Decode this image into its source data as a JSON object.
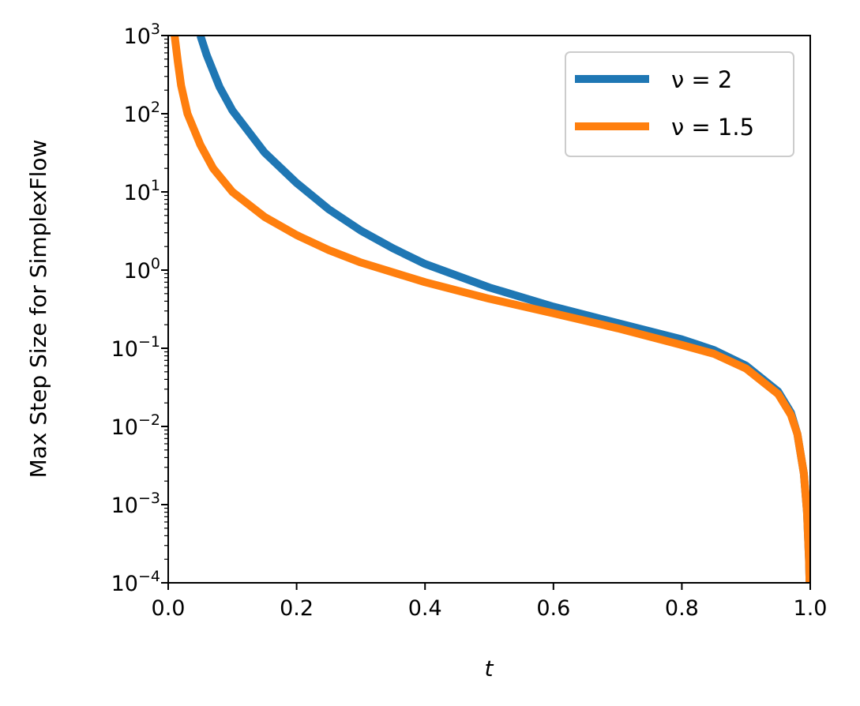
{
  "chart_data": {
    "type": "line",
    "title": "",
    "xlabel": "t",
    "ylabel": "Max Step Size for SimplexFlow",
    "xlim": [
      0.0,
      1.0
    ],
    "ylim": [
      0.0001,
      1000
    ],
    "yscale": "log",
    "grid": false,
    "legend_position": "top-right",
    "x_ticks": [
      "0.0",
      "0.2",
      "0.4",
      "0.6",
      "0.8",
      "1.0"
    ],
    "y_ticks": [
      {
        "base": "10",
        "exp": "3"
      },
      {
        "base": "10",
        "exp": "2"
      },
      {
        "base": "10",
        "exp": "1"
      },
      {
        "base": "10",
        "exp": "0"
      },
      {
        "base": "10",
        "exp": "−1"
      },
      {
        "base": "10",
        "exp": "−2"
      },
      {
        "base": "10",
        "exp": "−3"
      },
      {
        "base": "10",
        "exp": "−4"
      }
    ],
    "series": [
      {
        "name": "ν = 2",
        "legend_label": "ν = 2",
        "color": "#1f77b4",
        "points": [
          [
            0.05,
            1000
          ],
          [
            0.06,
            560
          ],
          [
            0.08,
            220
          ],
          [
            0.1,
            110
          ],
          [
            0.15,
            32
          ],
          [
            0.2,
            13
          ],
          [
            0.25,
            6.0
          ],
          [
            0.3,
            3.2
          ],
          [
            0.35,
            1.9
          ],
          [
            0.4,
            1.2
          ],
          [
            0.5,
            0.6
          ],
          [
            0.6,
            0.34
          ],
          [
            0.7,
            0.21
          ],
          [
            0.8,
            0.13
          ],
          [
            0.85,
            0.095
          ],
          [
            0.9,
            0.06
          ],
          [
            0.95,
            0.028
          ],
          [
            0.97,
            0.015
          ],
          [
            0.98,
            0.008
          ],
          [
            0.99,
            0.0025
          ],
          [
            0.995,
            0.0008
          ],
          [
            0.998,
            0.0002
          ],
          [
            0.999,
            0.0001
          ]
        ]
      },
      {
        "name": "ν = 1.5",
        "legend_label": "ν = 1.5",
        "color": "#ff7f0e",
        "points": [
          [
            0.01,
            1000
          ],
          [
            0.015,
            460
          ],
          [
            0.02,
            230
          ],
          [
            0.03,
            100
          ],
          [
            0.05,
            40
          ],
          [
            0.07,
            20
          ],
          [
            0.1,
            10
          ],
          [
            0.15,
            4.8
          ],
          [
            0.2,
            2.8
          ],
          [
            0.25,
            1.8
          ],
          [
            0.3,
            1.25
          ],
          [
            0.4,
            0.7
          ],
          [
            0.5,
            0.43
          ],
          [
            0.6,
            0.28
          ],
          [
            0.7,
            0.18
          ],
          [
            0.8,
            0.11
          ],
          [
            0.85,
            0.085
          ],
          [
            0.9,
            0.055
          ],
          [
            0.95,
            0.026
          ],
          [
            0.97,
            0.014
          ],
          [
            0.98,
            0.008
          ],
          [
            0.99,
            0.0025
          ],
          [
            0.995,
            0.0008
          ],
          [
            0.998,
            0.0002
          ],
          [
            0.999,
            0.0001
          ]
        ]
      }
    ]
  }
}
